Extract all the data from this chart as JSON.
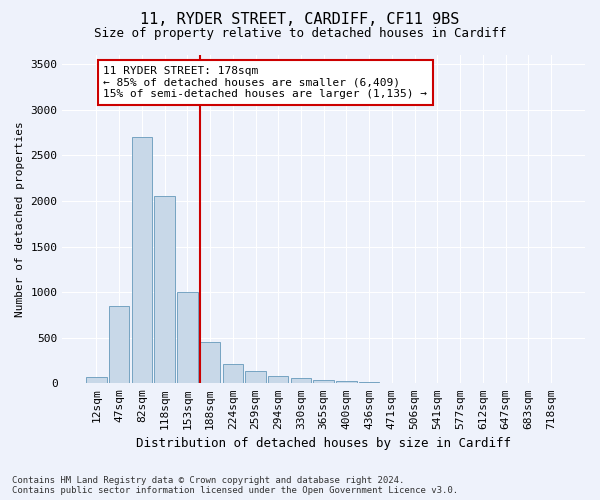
{
  "title1": "11, RYDER STREET, CARDIFF, CF11 9BS",
  "title2": "Size of property relative to detached houses in Cardiff",
  "xlabel": "Distribution of detached houses by size in Cardiff",
  "ylabel": "Number of detached properties",
  "footnote": "Contains HM Land Registry data © Crown copyright and database right 2024.\nContains public sector information licensed under the Open Government Licence v3.0.",
  "categories": [
    "12sqm",
    "47sqm",
    "82sqm",
    "118sqm",
    "153sqm",
    "188sqm",
    "224sqm",
    "259sqm",
    "294sqm",
    "330sqm",
    "365sqm",
    "400sqm",
    "436sqm",
    "471sqm",
    "506sqm",
    "541sqm",
    "577sqm",
    "612sqm",
    "647sqm",
    "683sqm",
    "718sqm"
  ],
  "bar_heights": [
    65,
    850,
    2700,
    2050,
    1000,
    450,
    210,
    130,
    75,
    60,
    35,
    20,
    10,
    5,
    3,
    2,
    1,
    1,
    0,
    0,
    0
  ],
  "bar_color": "#c8d8e8",
  "bar_edge_color": "#6699bb",
  "vline_index": 5,
  "vline_color": "#cc0000",
  "ylim": [
    0,
    3600
  ],
  "yticks": [
    0,
    500,
    1000,
    1500,
    2000,
    2500,
    3000,
    3500
  ],
  "annotation_title": "11 RYDER STREET: 178sqm",
  "annotation_line1": "← 85% of detached houses are smaller (6,409)",
  "annotation_line2": "15% of semi-detached houses are larger (1,135) →",
  "annotation_box_color": "#ffffff",
  "annotation_box_edge": "#cc0000",
  "bg_color": "#eef2fb",
  "grid_color": "#ffffff",
  "title1_fontsize": 11,
  "title2_fontsize": 9,
  "ylabel_fontsize": 8,
  "xlabel_fontsize": 9,
  "tick_fontsize": 8,
  "annot_fontsize": 8,
  "footnote_fontsize": 6.5
}
